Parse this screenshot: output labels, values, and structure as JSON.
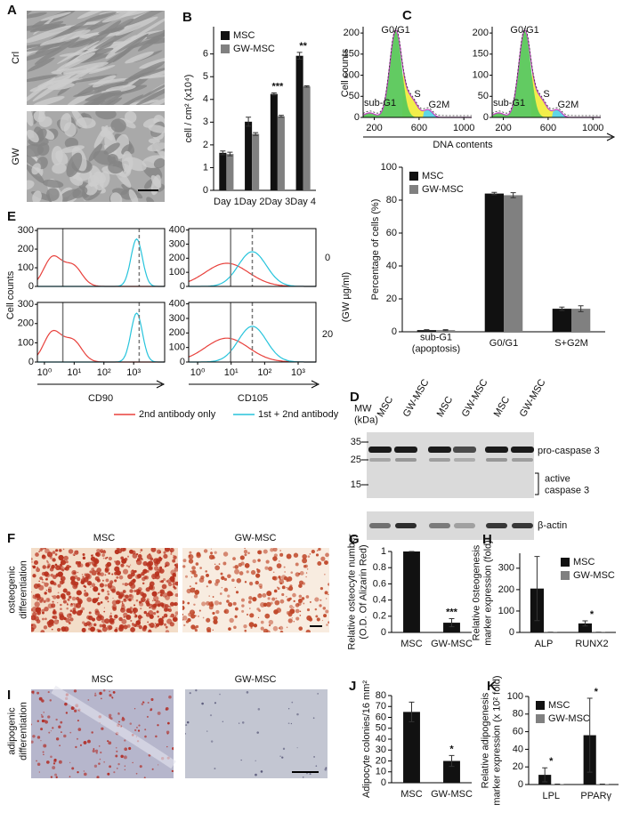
{
  "panels": {
    "A": {
      "letter": "A",
      "rows": [
        "Crl",
        "GW"
      ]
    },
    "C": {
      "letter": "C",
      "ylabel": "Cell counts",
      "xlabel": "DNA contents",
      "phases": [
        "G0/G1",
        "sub-G1",
        "S",
        "G2M"
      ]
    },
    "D": {
      "letter": "D",
      "mw_label": "MW\n(kDa)",
      "mw": [
        "35",
        "25",
        "15"
      ],
      "lanes": [
        "MSC",
        "GW-MSC",
        "MSC",
        "GW-MSC",
        "MSC",
        "GW-MSC"
      ],
      "bands": [
        "pro-caspase 3",
        "active\ncaspase 3",
        "β-actin"
      ]
    },
    "E": {
      "letter": "E",
      "ylabel": "Cell counts",
      "markers": [
        "CD90",
        "CD105"
      ],
      "doses": [
        "0",
        "20"
      ],
      "dose_unit": "(GW µg/ml)",
      "legend": [
        {
          "name": "2nd antibody only",
          "color": "#e8413c"
        },
        {
          "name": "1st + 2nd antibody",
          "color": "#27c4dc"
        }
      ]
    },
    "F": {
      "letter": "F",
      "side": "osteogenic\ndifferentiation",
      "columns": [
        "MSC",
        "GW-MSC"
      ]
    },
    "I": {
      "letter": "I",
      "side": "adipogenic\ndifferentiation",
      "columns": [
        "MSC",
        "GW-MSC"
      ]
    }
  },
  "chart_data": [
    {
      "type": "bar",
      "panel": "B",
      "ylabel": "cell / cm² (x10⁴)",
      "categories": [
        "Day 1",
        "Day 2",
        "Day 3",
        "Day 4"
      ],
      "series": [
        {
          "name": "MSC",
          "color": "#111111",
          "values": [
            1.65,
            3.02,
            4.24,
            5.92
          ],
          "errors": [
            0.08,
            0.2,
            0.05,
            0.15
          ]
        },
        {
          "name": "GW-MSC",
          "color": "#808080",
          "values": [
            1.6,
            2.48,
            3.26,
            4.57
          ],
          "errors": [
            0.08,
            0.06,
            0.04,
            0.03
          ]
        }
      ],
      "annotations": [
        null,
        null,
        "***",
        "**"
      ],
      "ylim": [
        0,
        7.2
      ],
      "yticks": [
        0,
        1,
        2,
        3,
        4,
        5,
        6
      ],
      "legend": "upper left"
    },
    {
      "type": "flow",
      "kind": "cycle",
      "xlim": [
        100,
        1070
      ],
      "xticks": [
        200,
        600,
        1000
      ],
      "ylim": [
        0,
        215
      ],
      "yticks": [
        0,
        50,
        100,
        150,
        200
      ]
    },
    {
      "type": "flow",
      "kind": "cycle",
      "xlim": [
        100,
        1070
      ],
      "xticks": [
        200,
        600,
        1000
      ],
      "ylim": [
        0,
        215
      ],
      "yticks": [
        0,
        50,
        100,
        150,
        200
      ]
    },
    {
      "type": "bar",
      "ylabel": "Percentage of cells  (%)",
      "categories": [
        "sub-G1\n(apoptosis)",
        "G0/G1",
        "S+G2M"
      ],
      "series": [
        {
          "name": "MSC",
          "color": "#111111",
          "values": [
            1,
            84,
            14
          ],
          "errors": [
            0.3,
            0.7,
            1
          ]
        },
        {
          "name": "GW-MSC",
          "color": "#808080",
          "values": [
            1,
            83,
            14
          ],
          "errors": [
            0.3,
            1.5,
            1.8
          ]
        }
      ],
      "ylim": [
        0,
        100
      ],
      "yticks": [
        0,
        20,
        40,
        60,
        80,
        100
      ],
      "legend": "upper left"
    },
    {
      "type": "flow",
      "kind": "cd90",
      "xscale": "log",
      "xlim": [
        0.58,
        11000
      ],
      "ylim": [
        0,
        310
      ],
      "yticks": [
        0,
        100,
        200,
        300
      ]
    },
    {
      "type": "flow",
      "kind": "cd105",
      "xscale": "log",
      "xlim": [
        0.54,
        3400
      ],
      "ylim": [
        0,
        410
      ],
      "yticks": [
        0,
        100,
        200,
        300,
        400
      ]
    },
    {
      "type": "flow",
      "kind": "cd90",
      "xscale": "log",
      "xlim": [
        0.58,
        11000
      ],
      "ylim": [
        0,
        310
      ],
      "yticks": [
        0,
        100,
        200,
        300
      ],
      "xticks": [
        {
          "value": 1,
          "label": "10⁰"
        },
        {
          "value": 10,
          "label": "10¹"
        },
        {
          "value": 100,
          "label": "10²"
        },
        {
          "value": 1000,
          "label": "10³"
        }
      ]
    },
    {
      "type": "flow",
      "kind": "cd105",
      "xscale": "log",
      "xlim": [
        0.54,
        3400
      ],
      "ylim": [
        0,
        410
      ],
      "yticks": [
        0,
        100,
        200,
        300,
        400
      ],
      "xticks": [
        {
          "value": 1,
          "label": "10⁰"
        },
        {
          "value": 10,
          "label": "10¹"
        },
        {
          "value": 100,
          "label": "10²"
        },
        {
          "value": 1000,
          "label": "10³"
        }
      ]
    },
    {
      "type": "bar",
      "panel": "G",
      "ylabel": "Relative osteocyte number\n(O.D.  Of Alizarin Red)",
      "categories": [
        "MSC",
        "GW-MSC"
      ],
      "values": [
        1,
        0.12
      ],
      "errors": [
        0,
        0.05
      ],
      "color": "#111111",
      "annotations": [
        null,
        "***"
      ],
      "ylim": [
        0,
        1
      ],
      "yticks": [
        0,
        0.2,
        0.4,
        0.6,
        0.8,
        1
      ]
    },
    {
      "type": "bar",
      "panel": "H",
      "ylabel": "Relative 0steogenesis\nmarker expression (fold)",
      "categories": [
        "ALP",
        "RUNX2"
      ],
      "series": [
        {
          "name": "MSC",
          "color": "#111111",
          "values": [
            205,
            42
          ],
          "errors": [
            150,
            12
          ]
        },
        {
          "name": "GW-MSC",
          "color": "#808080",
          "values": [
            1,
            1
          ],
          "errors": [
            0,
            0
          ]
        }
      ],
      "annotations": [
        null,
        "*"
      ],
      "ylim": [
        0,
        370
      ],
      "yticks": [
        0,
        100,
        200,
        300
      ],
      "legend": "upper right"
    },
    {
      "type": "bar",
      "panel": "J",
      "ylabel": "Adipocyte colonies/16 mm²",
      "categories": [
        "MSC",
        "GW-MSC"
      ],
      "values": [
        65,
        20
      ],
      "errors": [
        9,
        5
      ],
      "color": "#111111",
      "annotations": [
        null,
        "*"
      ],
      "ylim": [
        0,
        80
      ],
      "yticks": [
        0,
        10,
        20,
        30,
        40,
        50,
        60,
        70,
        80
      ]
    },
    {
      "type": "bar",
      "panel": "K",
      "ylabel": "Relative adipogenesis\nmarker expression (x 10² fold)",
      "categories": [
        "LPL",
        "PPARγ"
      ],
      "series": [
        {
          "name": "MSC",
          "color": "#111111",
          "values": [
            11,
            56
          ],
          "errors": [
            8,
            42
          ]
        },
        {
          "name": "GW-MSC",
          "color": "#808080",
          "values": [
            0.5,
            0.5
          ],
          "errors": [
            0,
            0
          ]
        }
      ],
      "annotations": [
        "*",
        "*"
      ],
      "ylim": [
        0,
        100
      ],
      "yticks": [
        0,
        20,
        40,
        60,
        80,
        100
      ],
      "legend": "upper left"
    }
  ]
}
